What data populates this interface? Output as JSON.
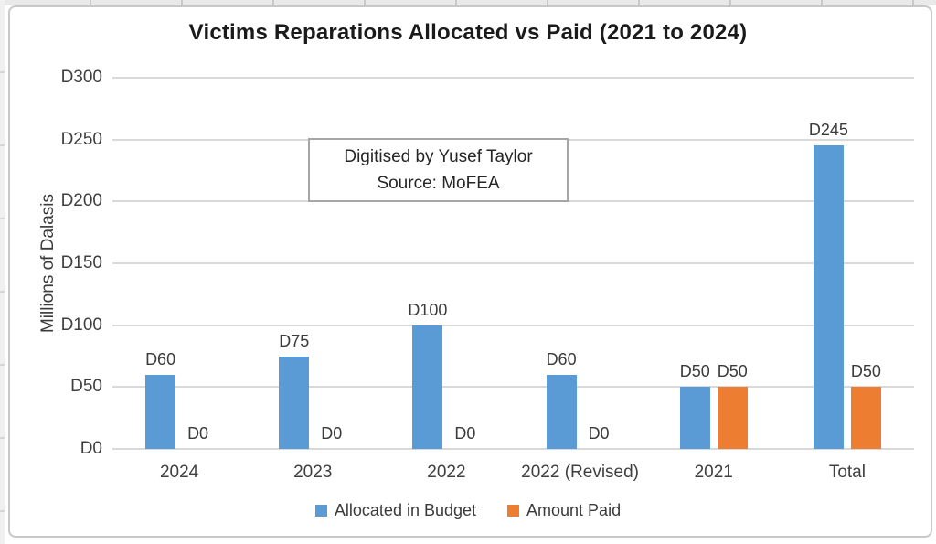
{
  "annotation_box": {
    "line1": "Digitised by Yusef Taylor",
    "line2": "Source: MoFEA"
  },
  "chart_data": {
    "type": "bar",
    "title": "Victims Reparations Allocated vs Paid (2021 to 2024)",
    "categories": [
      "2024",
      "2023",
      "2022",
      "2022 (Revised)",
      "2021",
      "Total"
    ],
    "series": [
      {
        "name": "Allocated in Budget",
        "color": "#5B9BD5",
        "values": [
          60,
          75,
          100,
          60,
          50,
          245
        ]
      },
      {
        "name": "Amount Paid",
        "color": "#ED7D31",
        "values": [
          0,
          0,
          0,
          0,
          50,
          50
        ]
      }
    ],
    "data_label_prefix": "D",
    "data_labels": {
      "allocated": [
        "D60",
        "D75",
        "D100",
        "D60",
        "D50",
        "D245"
      ],
      "paid": [
        "D0",
        "D0",
        "D0",
        "D0",
        "D50",
        "D50"
      ]
    },
    "xlabel": "",
    "ylabel": "Millions of Dalasis",
    "ylim": [
      0,
      300
    ],
    "ytick_step": 50,
    "ytick_labels": [
      "D0",
      "D50",
      "D100",
      "D150",
      "D200",
      "D250",
      "D300"
    ],
    "grid": true,
    "legend_position": "bottom",
    "colors": {
      "gridline": "#D9D9D9",
      "axis_text": "#3F3F3F",
      "title_text": "#1A1A1A",
      "frame_border": "#C8C8C8",
      "annotation_border": "#A6A6A6"
    }
  }
}
